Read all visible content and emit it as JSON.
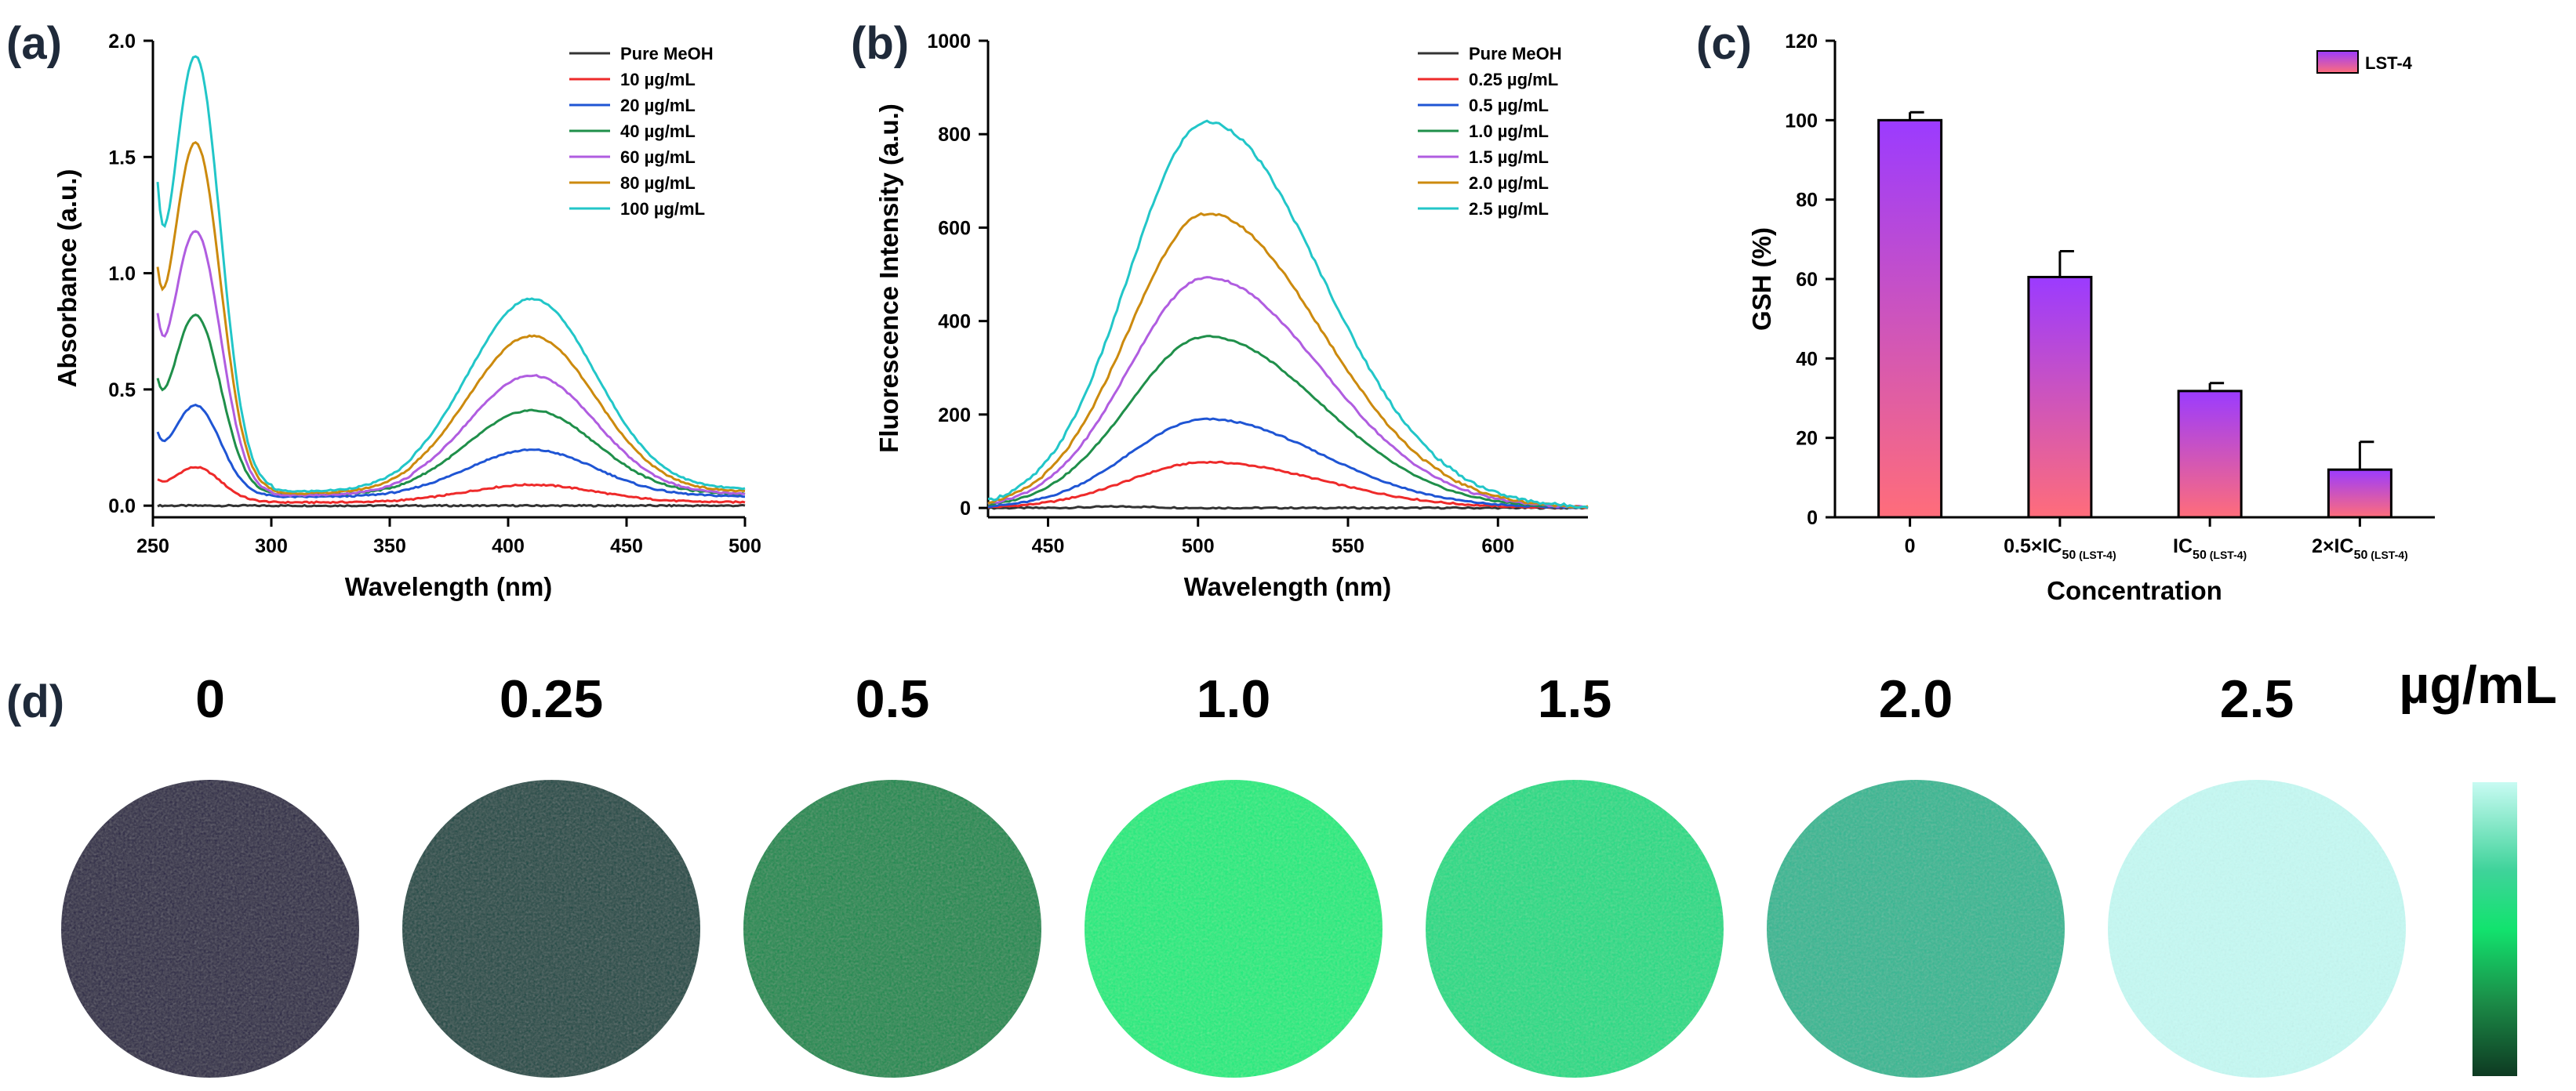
{
  "chart_data": [
    {
      "panel": "(a)",
      "type": "line",
      "xlabel": "Wavelength (nm)",
      "ylabel": "Absorbance (a.u.)",
      "xlim": [
        250,
        500
      ],
      "ylim": [
        -0.05,
        2.0
      ],
      "xticks": [
        250,
        300,
        350,
        400,
        450,
        500
      ],
      "yticks": [
        0.0,
        0.5,
        1.0,
        1.5,
        2.0
      ],
      "xtick_labels": [
        "250",
        "300",
        "350",
        "400",
        "450",
        "500"
      ],
      "ytick_labels": [
        "0.0",
        "0.5",
        "1.0",
        "1.5",
        "2.0"
      ],
      "legend_position": "top-right",
      "series": [
        {
          "name": "Pure MeOH",
          "color": "#333333",
          "uvPeak": 0.0,
          "visPeak": 0.0,
          "start": 0.0,
          "base": 0.0
        },
        {
          "name": "10 µg/mL",
          "color": "#ee2a2a",
          "uvPeak": 0.15,
          "visPeak": 0.075,
          "start": 0.1,
          "base": 0.015
        },
        {
          "name": "20 µg/mL",
          "color": "#1f55d4",
          "uvPeak": 0.39,
          "visPeak": 0.2,
          "start": 0.28,
          "base": 0.04
        },
        {
          "name": "40 µg/mL",
          "color": "#1f8f4a",
          "uvPeak": 0.77,
          "visPeak": 0.36,
          "start": 0.5,
          "base": 0.05
        },
        {
          "name": "60 µg/mL",
          "color": "#b05de0",
          "uvPeak": 1.13,
          "visPeak": 0.51,
          "start": 0.78,
          "base": 0.05
        },
        {
          "name": "80 µg/mL",
          "color": "#cc8a0e",
          "uvPeak": 1.5,
          "visPeak": 0.67,
          "start": 0.97,
          "base": 0.06
        },
        {
          "name": "100 µg/mL",
          "color": "#22c6c8",
          "uvPeak": 1.86,
          "visPeak": 0.82,
          "start": 1.32,
          "base": 0.07
        }
      ]
    },
    {
      "panel": "(b)",
      "type": "line",
      "xlabel": "Wavelength (nm)",
      "ylabel": "Fluorescence Intensity (a.u.)",
      "xlim": [
        430,
        630
      ],
      "ylim": [
        -20,
        1000
      ],
      "xticks": [
        450,
        500,
        550,
        600
      ],
      "yticks": [
        0,
        200,
        400,
        600,
        800,
        1000
      ],
      "xtick_labels": [
        "450",
        "500",
        "550",
        "600"
      ],
      "ytick_labels": [
        "0",
        "200",
        "400",
        "600",
        "800",
        "1000"
      ],
      "legend_position": "top-right",
      "series": [
        {
          "name": "Pure MeOH",
          "color": "#333333",
          "peak": 3
        },
        {
          "name": "0.25 µg/mL",
          "color": "#ee2a2a",
          "peak": 98
        },
        {
          "name": "0.5 µg/mL",
          "color": "#1f55d4",
          "peak": 190
        },
        {
          "name": "1.0 µg/mL",
          "color": "#1f8f4a",
          "peak": 367
        },
        {
          "name": "1.5 µg/mL",
          "color": "#b05de0",
          "peak": 493
        },
        {
          "name": "2.0 µg/mL",
          "color": "#cc8a0e",
          "peak": 630
        },
        {
          "name": "2.5 µg/mL",
          "color": "#22c6c8",
          "peak": 826
        }
      ]
    },
    {
      "panel": "(c)",
      "type": "bar",
      "xlabel": "Concentration",
      "ylabel": "GSH (%)",
      "ylim": [
        0,
        120
      ],
      "yticks": [
        0,
        20,
        40,
        60,
        80,
        100,
        120
      ],
      "ytick_labels": [
        "0",
        "20",
        "40",
        "60",
        "80",
        "100",
        "120"
      ],
      "categories": [
        {
          "pre": "0",
          "sub": "",
          "suffix": ""
        },
        {
          "pre": "0.5×IC",
          "sub": "50",
          "suffix": " (LST-4)"
        },
        {
          "pre": "IC",
          "sub": "50",
          "suffix": " (LST-4)"
        },
        {
          "pre": "2×IC",
          "sub": "50",
          "suffix": " (LST-4)"
        }
      ],
      "values": [
        100,
        60.5,
        31.8,
        12
      ],
      "errors": [
        2,
        6.5,
        2,
        7
      ],
      "legend": "LST-4",
      "legend_position": "top-right",
      "gradient_top": "#9b3bff",
      "gradient_bottom": "#ff6d7a"
    }
  ],
  "panel_d": {
    "label": "(d)",
    "unit": "µg/mL",
    "samples": [
      {
        "conc": "0",
        "color": "#2a2845"
      },
      {
        "conc": "0.25",
        "color": "#1c4a44"
      },
      {
        "conc": "0.5",
        "color": "#138a50"
      },
      {
        "conc": "1.0",
        "color": "#14ec7e"
      },
      {
        "conc": "1.5",
        "color": "#1bdb85"
      },
      {
        "conc": "2.0",
        "color": "#33b793"
      },
      {
        "conc": "2.5",
        "color": "#c6faf4"
      }
    ],
    "bar_colors": [
      "#c8fbf3",
      "#3fd39a",
      "#12e36e",
      "#1b8b47",
      "#0e3a22"
    ]
  }
}
